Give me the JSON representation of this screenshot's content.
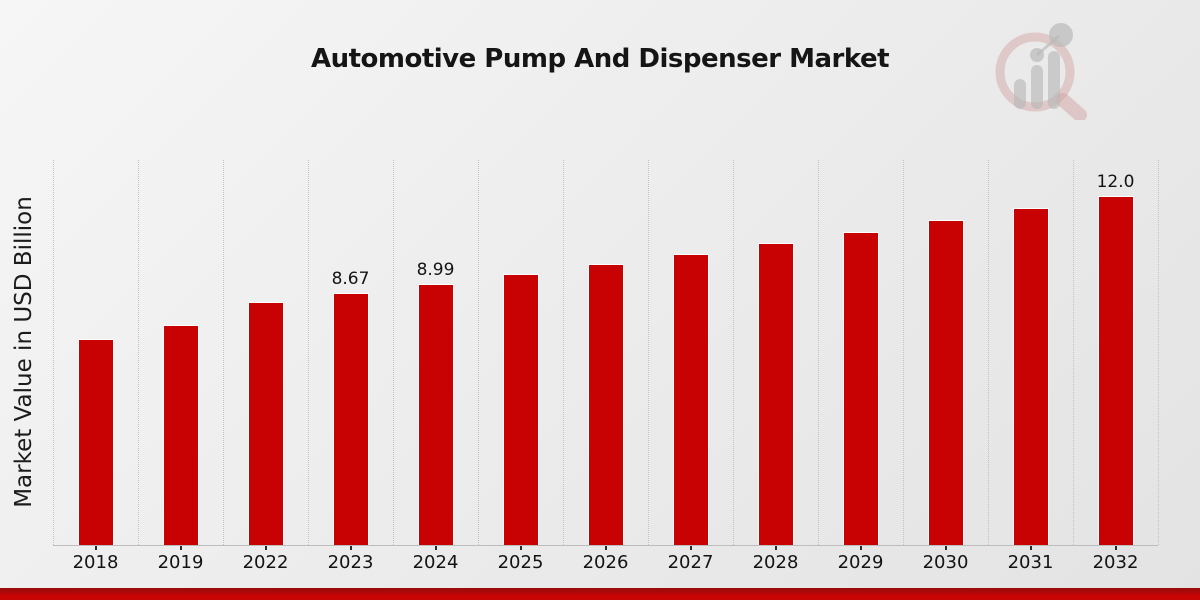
{
  "page": {
    "title": "Automotive Pump And Dispenser Market",
    "logo_icon": "mrfr-magnifier-bar-chart-logo"
  },
  "chart_data": {
    "type": "bar",
    "title": "Automotive Pump And Dispenser Market",
    "xlabel": "",
    "ylabel": "Market Value in USD Billion",
    "legend": null,
    "grid": "vertical-dotted-category-boundaries",
    "ylim": [
      0,
      13.24
    ],
    "categories": [
      "2018",
      "2019",
      "2022",
      "2023",
      "2024",
      "2025",
      "2026",
      "2027",
      "2028",
      "2029",
      "2030",
      "2031",
      "2032"
    ],
    "values": [
      7.1,
      7.55,
      8.36,
      8.67,
      8.99,
      9.32,
      9.66,
      10.02,
      10.39,
      10.77,
      11.16,
      11.58,
      12.0
    ],
    "bar_labels": [
      "",
      "",
      "",
      "8.67",
      "8.99",
      "",
      "",
      "",
      "",
      "",
      "",
      "",
      "12.0"
    ]
  },
  "colors": {
    "bar_fill": "#c80202",
    "bar_edge": "#ffffff",
    "footer_band_dark": "#9e0b0b",
    "footer_band_red": "#c90404",
    "gridline": "#c3c3c3",
    "background_light": "#f6f6f6",
    "background_dark": "#e3e3e3"
  }
}
